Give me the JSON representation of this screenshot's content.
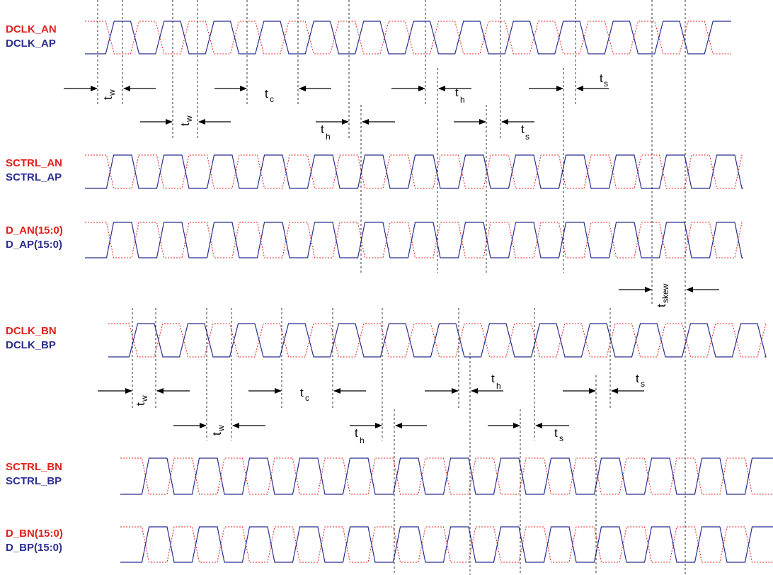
{
  "signals": {
    "dclk_a": {
      "n": "DCLK_AN",
      "p": "DCLK_AP"
    },
    "sctrl_a": {
      "n": "SCTRL_AN",
      "p": "SCTRL_AP"
    },
    "d_a": {
      "n": "D_AN(15:0)",
      "p": "D_AP(15:0)"
    },
    "dclk_b": {
      "n": "DCLK_BN",
      "p": "DCLK_BP"
    },
    "sctrl_b": {
      "n": "SCTRL_BN",
      "p": "SCTRL_BP"
    },
    "d_b": {
      "n": "D_BN(15:0)",
      "p": "D_BP(15:0)"
    }
  },
  "timing": {
    "t": "t",
    "w": "w",
    "c": "c",
    "h": "h",
    "s": "s",
    "skew": "skew"
  },
  "colors": {
    "n_signal": "#e0201c",
    "p_signal": "#2b2d8f",
    "guides": "#000000"
  }
}
